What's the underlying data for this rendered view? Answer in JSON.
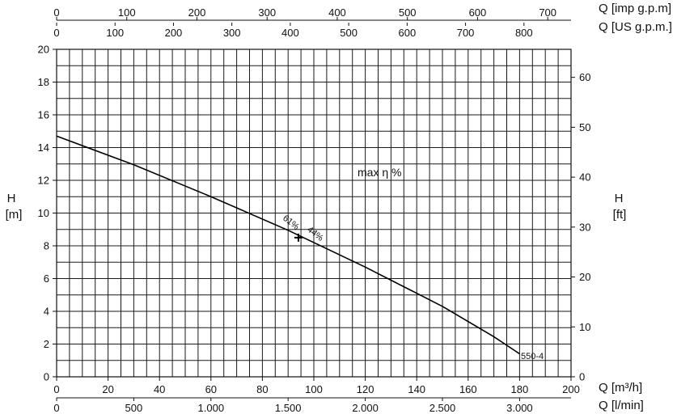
{
  "chart_data": {
    "type": "line",
    "title": "",
    "x_primary": {
      "label": "Q [m³/h]",
      "range": [
        0,
        200
      ],
      "ticks": [
        "0",
        "20",
        "40",
        "60",
        "80",
        "100",
        "120",
        "140",
        "160",
        "180",
        "200"
      ],
      "tick_values": [
        0,
        20,
        40,
        60,
        80,
        100,
        120,
        140,
        160,
        180,
        200
      ]
    },
    "x_lmin": {
      "label": "Q [l/min]",
      "ticks": [
        "0",
        "500",
        "1.000",
        "1.500",
        "2.000",
        "2.500",
        "3.000"
      ],
      "tick_values": [
        0,
        500,
        1000,
        1500,
        2000,
        2500,
        3000
      ]
    },
    "x_usgpm": {
      "label": "Q [US g.p.m.]",
      "ticks": [
        "0",
        "100",
        "200",
        "300",
        "400",
        "500",
        "600",
        "700",
        "800"
      ],
      "tick_values": [
        0,
        100,
        200,
        300,
        400,
        500,
        600,
        700,
        800
      ]
    },
    "x_impgpm": {
      "label": "Q [imp g.p.m]",
      "ticks": [
        "0",
        "100",
        "200",
        "300",
        "400",
        "500",
        "600",
        "700"
      ],
      "tick_values": [
        0,
        100,
        200,
        300,
        400,
        500,
        600,
        700
      ]
    },
    "y_left": {
      "label_line1": "H",
      "label_line2": "[m]",
      "range": [
        0,
        20
      ],
      "ticks": [
        "0",
        "2",
        "4",
        "6",
        "8",
        "10",
        "12",
        "14",
        "16",
        "18",
        "20"
      ],
      "tick_values": [
        0,
        2,
        4,
        6,
        8,
        10,
        12,
        14,
        16,
        18,
        20
      ]
    },
    "y_right": {
      "label_line1": "H",
      "label_line2": "[ft]",
      "ticks": [
        "0",
        "10",
        "20",
        "30",
        "40",
        "50",
        "60"
      ],
      "tick_values": [
        0,
        10,
        20,
        30,
        40,
        50,
        60
      ]
    },
    "grid": true,
    "series": [
      {
        "name": "550-4",
        "x": [
          0,
          30,
          60,
          90,
          120,
          150,
          170,
          180
        ],
        "y": [
          14.7,
          12.95,
          11.0,
          8.95,
          6.7,
          4.3,
          2.45,
          1.4
        ]
      }
    ],
    "bep_marker": {
      "x": 94,
      "y": 8.5
    },
    "annotations": {
      "max_eta": "max η %",
      "eff_left": "61%",
      "eff_right": "44%",
      "curve_label": "550-4"
    }
  }
}
